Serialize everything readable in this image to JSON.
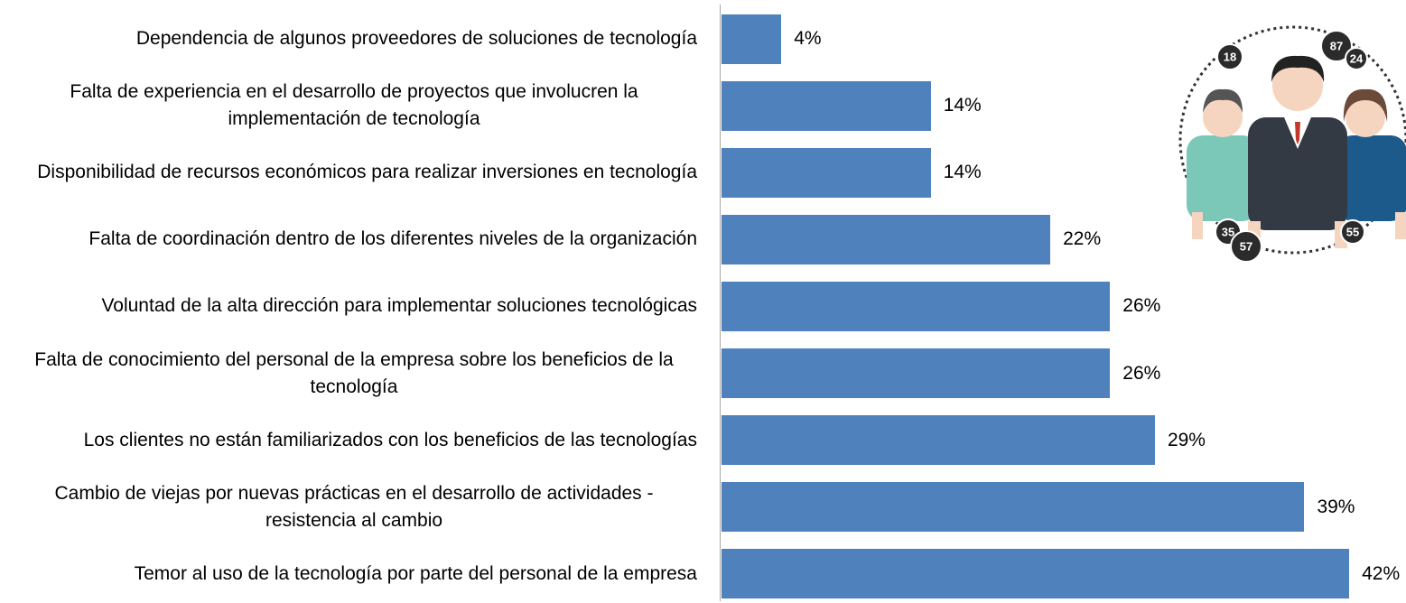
{
  "chart_data": {
    "type": "bar",
    "orientation": "horizontal",
    "categories": [
      "Dependencia de algunos proveedores de soluciones de tecnología",
      "Falta de experiencia en el desarrollo de proyectos que involucren la implementación de tecnología",
      "Disponibilidad de recursos económicos para realizar inversiones en tecnología",
      "Falta de coordinación dentro de los diferentes niveles de la organización",
      "Voluntad de la alta dirección para implementar soluciones tecnológicas",
      "Falta de conocimiento del personal de la empresa sobre los beneficios de la tecnología",
      "Los clientes no están familiarizados con los beneficios de las tecnologías",
      "Cambio de viejas por nuevas prácticas en el desarrollo de actividades - resistencia al cambio",
      "Temor al uso de la tecnología por parte del personal de la empresa"
    ],
    "values": [
      4,
      14,
      14,
      22,
      26,
      26,
      29,
      39,
      42
    ],
    "value_labels": [
      "4%",
      "14%",
      "14%",
      "22%",
      "26%",
      "26%",
      "29%",
      "39%",
      "42%"
    ],
    "color": "#4f81bd"
  },
  "illustration": {
    "badges": [
      "18",
      "87",
      "24",
      "35",
      "57",
      "55"
    ]
  }
}
